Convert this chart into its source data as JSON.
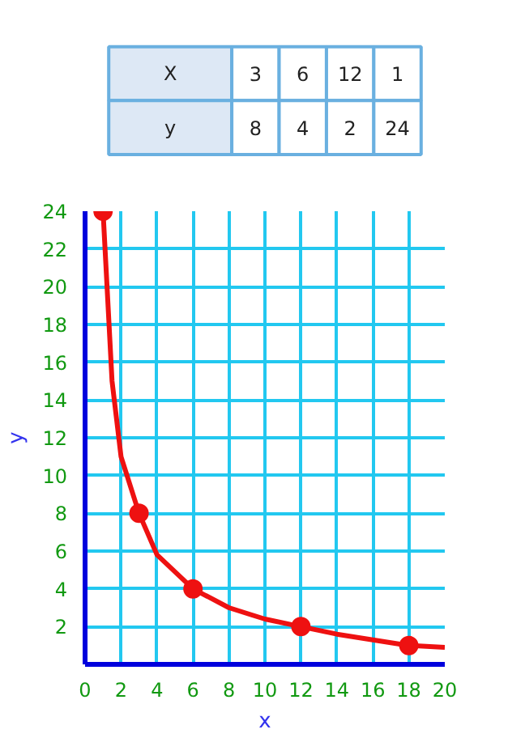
{
  "chart_data": {
    "type": "line",
    "xlabel": "x",
    "ylabel": "y",
    "annotations": [
      "X",
      "3",
      "6",
      "12",
      "1",
      "y",
      "8",
      "4",
      "2",
      "24"
    ],
    "xlim": [
      0,
      20
    ],
    "ylim": [
      0,
      24
    ],
    "xticks": [
      0,
      2,
      4,
      6,
      8,
      10,
      12,
      14,
      16,
      18,
      20
    ],
    "yticks": [
      2,
      4,
      6,
      8,
      10,
      12,
      14,
      16,
      18,
      20,
      22,
      24
    ],
    "grid": true,
    "series": [
      {
        "color": "#ee1111",
        "x": [
          1,
          1.5,
          2,
          3,
          4,
          6,
          8,
          10,
          12,
          14,
          16,
          18,
          20
        ],
        "values": [
          24,
          15,
          11,
          8,
          5.8,
          4,
          3,
          2.4,
          2,
          1.6,
          1.3,
          1,
          0.9
        ]
      },
      {
        "type": "scatter",
        "color": "#ee1111",
        "x": [
          1,
          3,
          6,
          12,
          18
        ],
        "values": [
          24,
          8,
          4,
          2,
          1
        ]
      }
    ]
  }
}
